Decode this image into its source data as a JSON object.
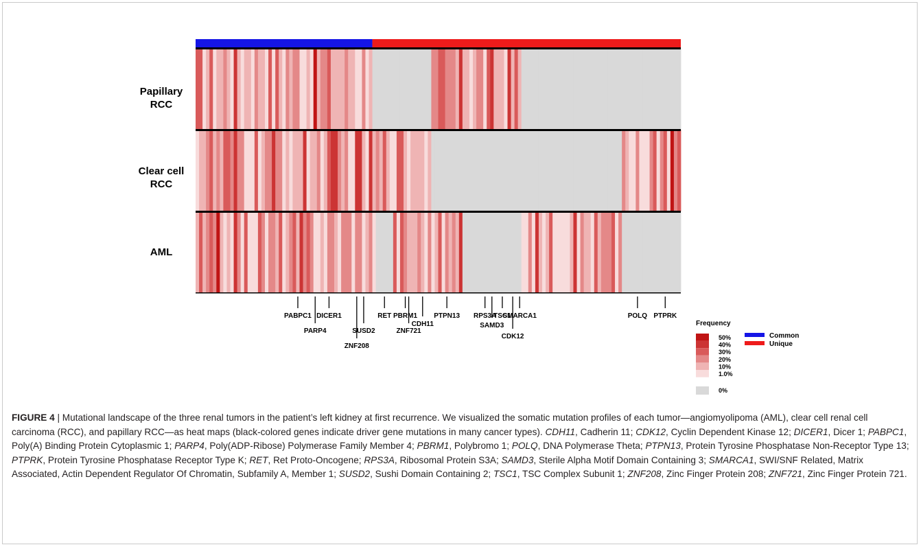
{
  "figure": {
    "label": "FIGURE 4",
    "separator": " | ",
    "caption_segments": [
      {
        "t": "Mutational landscape of the three renal tumors in the patient’s left kidney at first recurrence. We visualized the somatic mutation profiles of each tumor—angiomyolipoma (AML), clear cell renal cell carcinoma (RCC), and papillary RCC—as heat maps (black-colored genes indicate driver gene mutations in many cancer types). "
      },
      {
        "t": "CDH11",
        "i": true
      },
      {
        "t": ", Cadherin 11; "
      },
      {
        "t": "CDK12",
        "i": true
      },
      {
        "t": ", Cyclin Dependent Kinase 12; "
      },
      {
        "t": "DICER1",
        "i": true
      },
      {
        "t": ", Dicer 1; "
      },
      {
        "t": "PABPC1",
        "i": true
      },
      {
        "t": ", Poly(A) Binding Protein Cytoplasmic 1; "
      },
      {
        "t": "PARP4",
        "i": true
      },
      {
        "t": ", Poly(ADP-Ribose) Polymerase Family Member 4; "
      },
      {
        "t": "PBRM1",
        "i": true
      },
      {
        "t": ", Polybromo 1; "
      },
      {
        "t": "POLQ",
        "i": true
      },
      {
        "t": ", DNA Polymerase Theta; "
      },
      {
        "t": "PTPN13",
        "i": true
      },
      {
        "t": ", Protein Tyrosine Phosphatase Non-Receptor Type 13; "
      },
      {
        "t": "PTPRK",
        "i": true
      },
      {
        "t": ", Protein Tyrosine Phosphatase Receptor Type K; "
      },
      {
        "t": "RET",
        "i": true
      },
      {
        "t": ", Ret Proto-Oncogene; "
      },
      {
        "t": "RPS3A",
        "i": true
      },
      {
        "t": ", Ribosomal Protein S3A; "
      },
      {
        "t": "SAMD3",
        "i": true
      },
      {
        "t": ", Sterile Alpha Motif Domain Containing 3; "
      },
      {
        "t": "SMARCA1",
        "i": true
      },
      {
        "t": ", SWI/SNF Related, Matrix Associated, Actin Dependent Regulator Of Chromatin, Subfamily A, Member 1; "
      },
      {
        "t": "SUSD2",
        "i": true
      },
      {
        "t": ", Sushi Domain Containing 2; "
      },
      {
        "t": "TSC1",
        "i": true
      },
      {
        "t": ", TSC Complex Subunit 1; "
      },
      {
        "t": "ZNF208",
        "i": true
      },
      {
        "t": ", Zinc Finger Protein 208; "
      },
      {
        "t": "ZNF721",
        "i": true
      },
      {
        "t": ", Zinc Finger Protein 721."
      }
    ]
  },
  "heatmap": {
    "rows": [
      "Papillary RCC",
      "Clear cell RCC",
      "AML"
    ],
    "row_label_lines": [
      [
        "Papillary",
        "RCC"
      ],
      [
        "Clear cell",
        "RCC"
      ],
      [
        "AML"
      ]
    ],
    "gene_count": 140,
    "groups": [
      {
        "name": "Common",
        "start": 0,
        "end": 51,
        "color": "#1515e6"
      },
      {
        "name": "Unique",
        "start": 51,
        "end": 140,
        "color": "#ee1b1b"
      }
    ],
    "present_ranges": {
      "Papillary RCC": [
        [
          0,
          51
        ],
        [
          68,
          94
        ]
      ],
      "Clear cell RCC": [
        [
          0,
          68
        ],
        [
          123,
          140
        ]
      ],
      "AML": [
        [
          0,
          52
        ],
        [
          57,
          77
        ],
        [
          94,
          123
        ]
      ]
    },
    "gene_labels": [
      {
        "gene": "PABPC1",
        "col": 29
      },
      {
        "gene": "PARP4",
        "col": 34
      },
      {
        "gene": "DICER1",
        "col": 38
      },
      {
        "gene": "ZNF208",
        "col": 46
      },
      {
        "gene": "SUSD2",
        "col": 48
      },
      {
        "gene": "RET",
        "col": 54
      },
      {
        "gene": "PBRM1",
        "col": 60
      },
      {
        "gene": "ZNF721",
        "col": 61
      },
      {
        "gene": "CDH11",
        "col": 65
      },
      {
        "gene": "PTPN13",
        "col": 72
      },
      {
        "gene": "RPS3A",
        "col": 83
      },
      {
        "gene": "SAMD3",
        "col": 85
      },
      {
        "gene": "TSC1",
        "col": 88
      },
      {
        "gene": "CDK12",
        "col": 91
      },
      {
        "gene": "SMARCA1",
        "col": 93
      },
      {
        "gene": "POLQ",
        "col": 127
      },
      {
        "gene": "PTPRK",
        "col": 135
      }
    ]
  },
  "legend": {
    "frequency_title": "Frequency",
    "frequency_levels": [
      {
        "label": "50%",
        "color": "#c01414"
      },
      {
        "label": "40%",
        "color": "#cc3434"
      },
      {
        "label": "30%",
        "color": "#d95a5a"
      },
      {
        "label": "20%",
        "color": "#e48888"
      },
      {
        "label": "10%",
        "color": "#efb4b4"
      },
      {
        "label": "1.0%",
        "color": "#f8dcdc"
      },
      {
        "label": "0%",
        "color": "#d9d9d9"
      }
    ],
    "groups": [
      {
        "label": "Common",
        "color": "#1515e6"
      },
      {
        "label": "Unique",
        "color": "#ee1b1b"
      }
    ]
  }
}
